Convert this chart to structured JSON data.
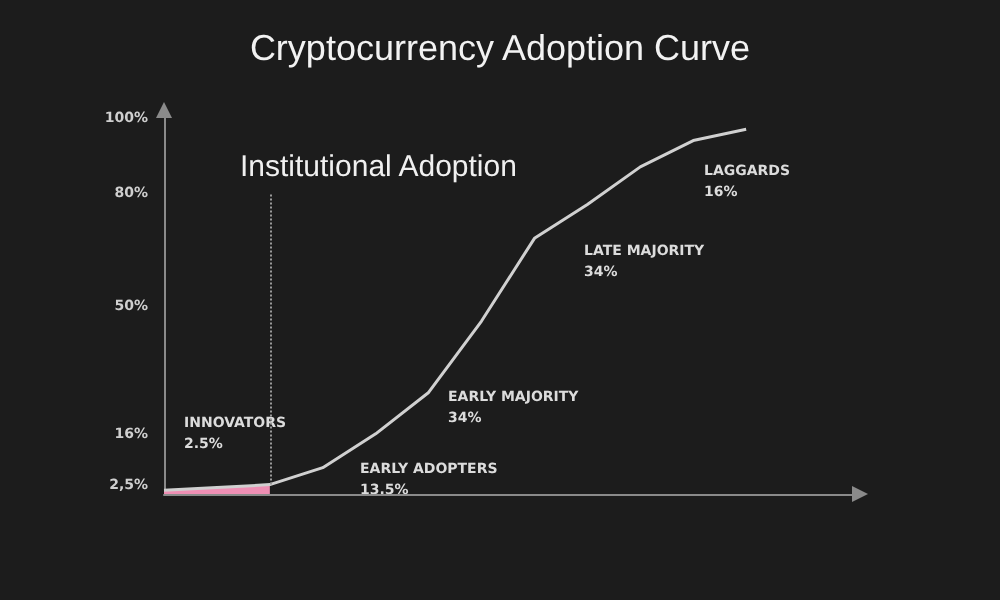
{
  "chart_data": {
    "type": "line",
    "title": "Cryptocurrency Adoption Curve",
    "categories": [
      null,
      null,
      null,
      null,
      null,
      null,
      null,
      null,
      null,
      null,
      null,
      null,
      null,
      null
    ],
    "series": [
      {
        "type": "area",
        "color": "#ee8fb4",
        "values": [
          1,
          1.7,
          2.5,
          null,
          null,
          null,
          null,
          null,
          null,
          null,
          null,
          null,
          null,
          null
        ]
      },
      {
        "type": "line",
        "color": "#d0d0d0",
        "values": [
          1,
          1.7,
          2.5,
          7,
          16,
          27,
          46,
          68,
          77,
          87,
          94,
          97,
          null,
          null
        ]
      }
    ],
    "ylim": [
      0,
      100
    ],
    "yticks": [
      {
        "value": 2.5,
        "label": "2,5%"
      },
      {
        "value": 16,
        "label": "16%"
      },
      {
        "value": 50,
        "label": "50%"
      },
      {
        "value": 80,
        "label": "80%"
      },
      {
        "value": 100,
        "label": "100%"
      }
    ],
    "tick_labels": "y",
    "grid": false,
    "marker": "none",
    "line_style": "solid",
    "annotations": [
      "Institutional Adoption",
      "INNOVATORS\n2.5%",
      "EARLY ADOPTERS\n13.5%",
      "EARLY MAJORITY\n34%",
      "LATE MAJORITY\n34%",
      "LAGGARDS\n16%"
    ]
  }
}
